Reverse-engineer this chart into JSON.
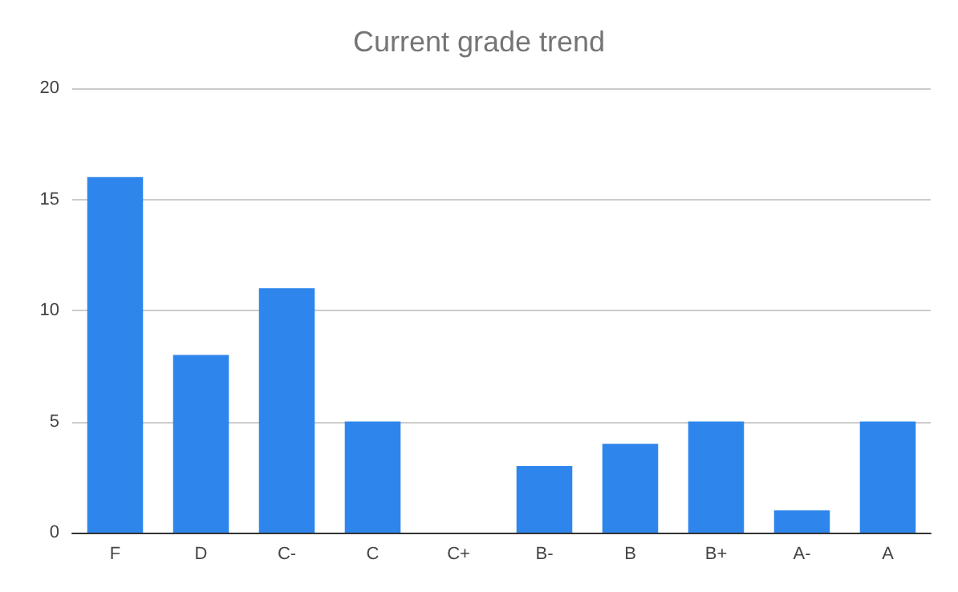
{
  "chart_data": {
    "type": "bar",
    "title": "Current grade trend",
    "categories": [
      "F",
      "D",
      "C-",
      "C",
      "C+",
      "B-",
      "B",
      "B+",
      "A-",
      "A"
    ],
    "values": [
      16,
      8,
      11,
      5,
      0,
      3,
      4,
      5,
      1,
      5
    ],
    "color": "#2e86ec",
    "ylim": [
      0,
      20
    ],
    "yticks": [
      0,
      5,
      10,
      15,
      20
    ],
    "grid": "y"
  }
}
